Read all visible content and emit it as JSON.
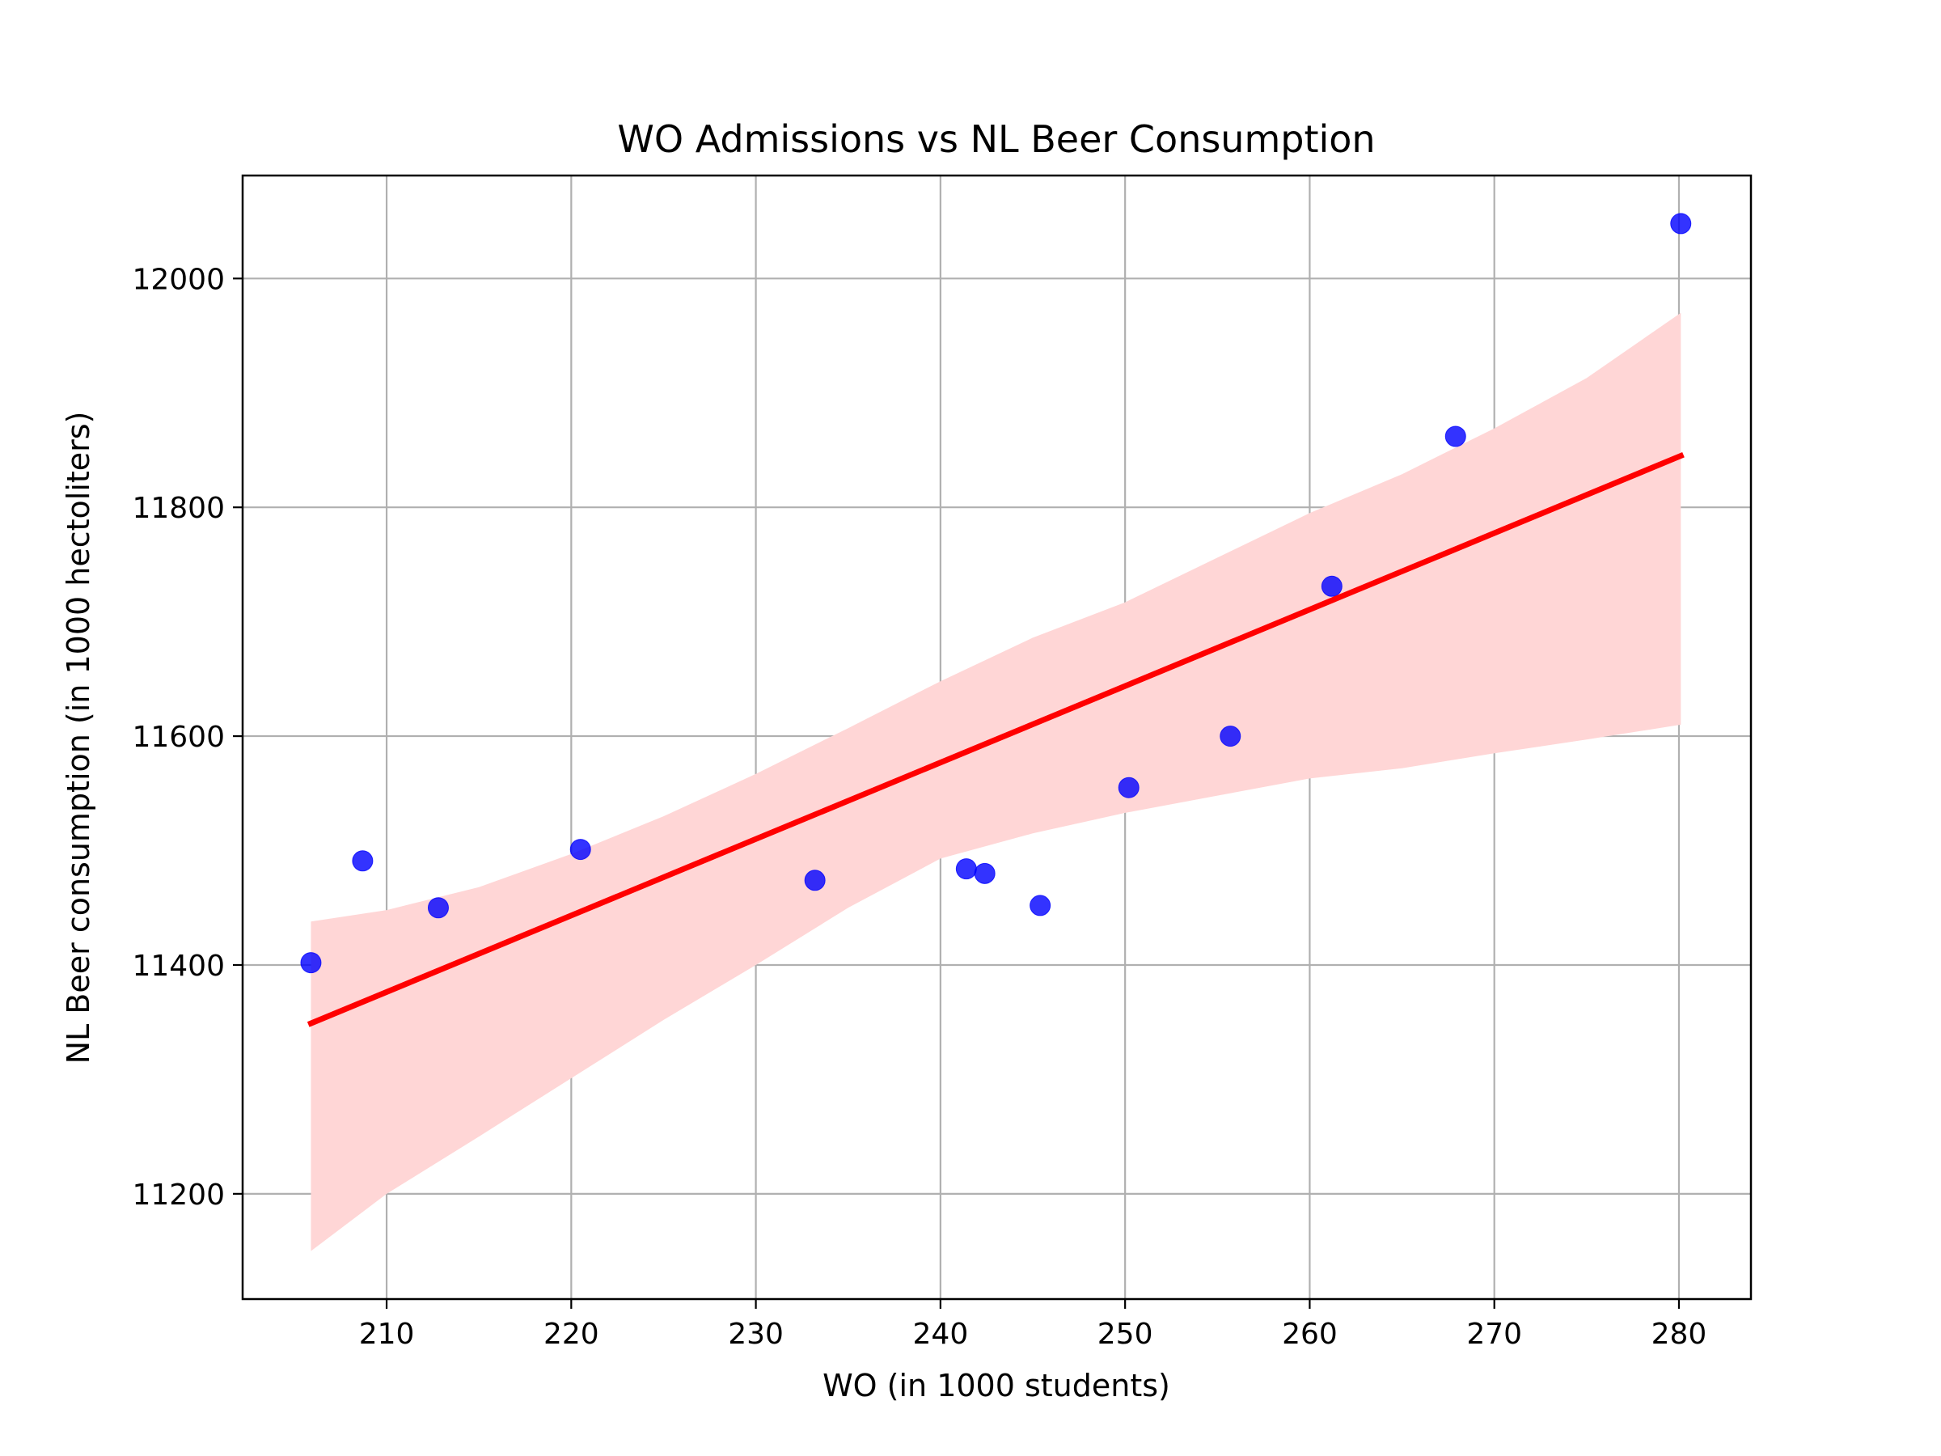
{
  "chart_data": {
    "type": "scatter",
    "title": "WO Admissions vs NL Beer Consumption",
    "xlabel": "WO (in 1000 students)",
    "ylabel": "NL Beer consumption (in 1000 hectoliters)",
    "xlim": [
      202.2,
      283.9
    ],
    "ylim": [
      11108,
      12090
    ],
    "xticks": [
      210,
      220,
      230,
      240,
      250,
      260,
      270,
      280
    ],
    "yticks": [
      11200,
      11400,
      11600,
      11800,
      12000
    ],
    "grid": true,
    "points": {
      "x": [
        205.9,
        208.7,
        212.8,
        220.5,
        233.2,
        241.4,
        242.4,
        245.4,
        250.2,
        255.7,
        261.2,
        267.9,
        280.1
      ],
      "y": [
        11402,
        11491,
        11450,
        11501,
        11474,
        11484,
        11480,
        11452,
        11555,
        11600,
        11731,
        11862,
        12048
      ],
      "color": "#0000ff"
    },
    "regression": {
      "x": [
        205.9,
        280.1
      ],
      "y": [
        11349,
        11845
      ],
      "color": "#ff0000"
    },
    "confidence_band": {
      "color": "#ffd6d6",
      "x": [
        205.9,
        210,
        215,
        220,
        225,
        230,
        235,
        240,
        245,
        250,
        255,
        260,
        265,
        270,
        275,
        280.1
      ],
      "upper": [
        11438,
        11448,
        11468,
        11497,
        11530,
        11567,
        11607,
        11648,
        11686,
        11717,
        11756,
        11795,
        11829,
        11869,
        11913,
        11970
      ],
      "lower": [
        11150,
        11200,
        11250,
        11301,
        11352,
        11400,
        11450,
        11493,
        11515,
        11533,
        11548,
        11563,
        11572,
        11585,
        11597,
        11610
      ]
    }
  }
}
